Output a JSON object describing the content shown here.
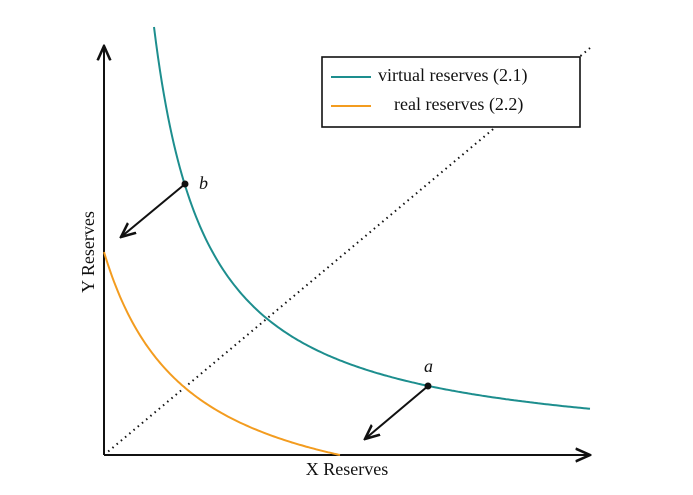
{
  "axes": {
    "x_label": "X Reserves",
    "y_label": "Y Reserves"
  },
  "legend": [
    {
      "label": "virtual reserves (2.1)",
      "color": "#1d8e8e"
    },
    {
      "label": "real reserves (2.2)",
      "color": "#f39c1f"
    }
  ],
  "points": [
    {
      "label": "a"
    },
    {
      "label": "b"
    }
  ]
}
